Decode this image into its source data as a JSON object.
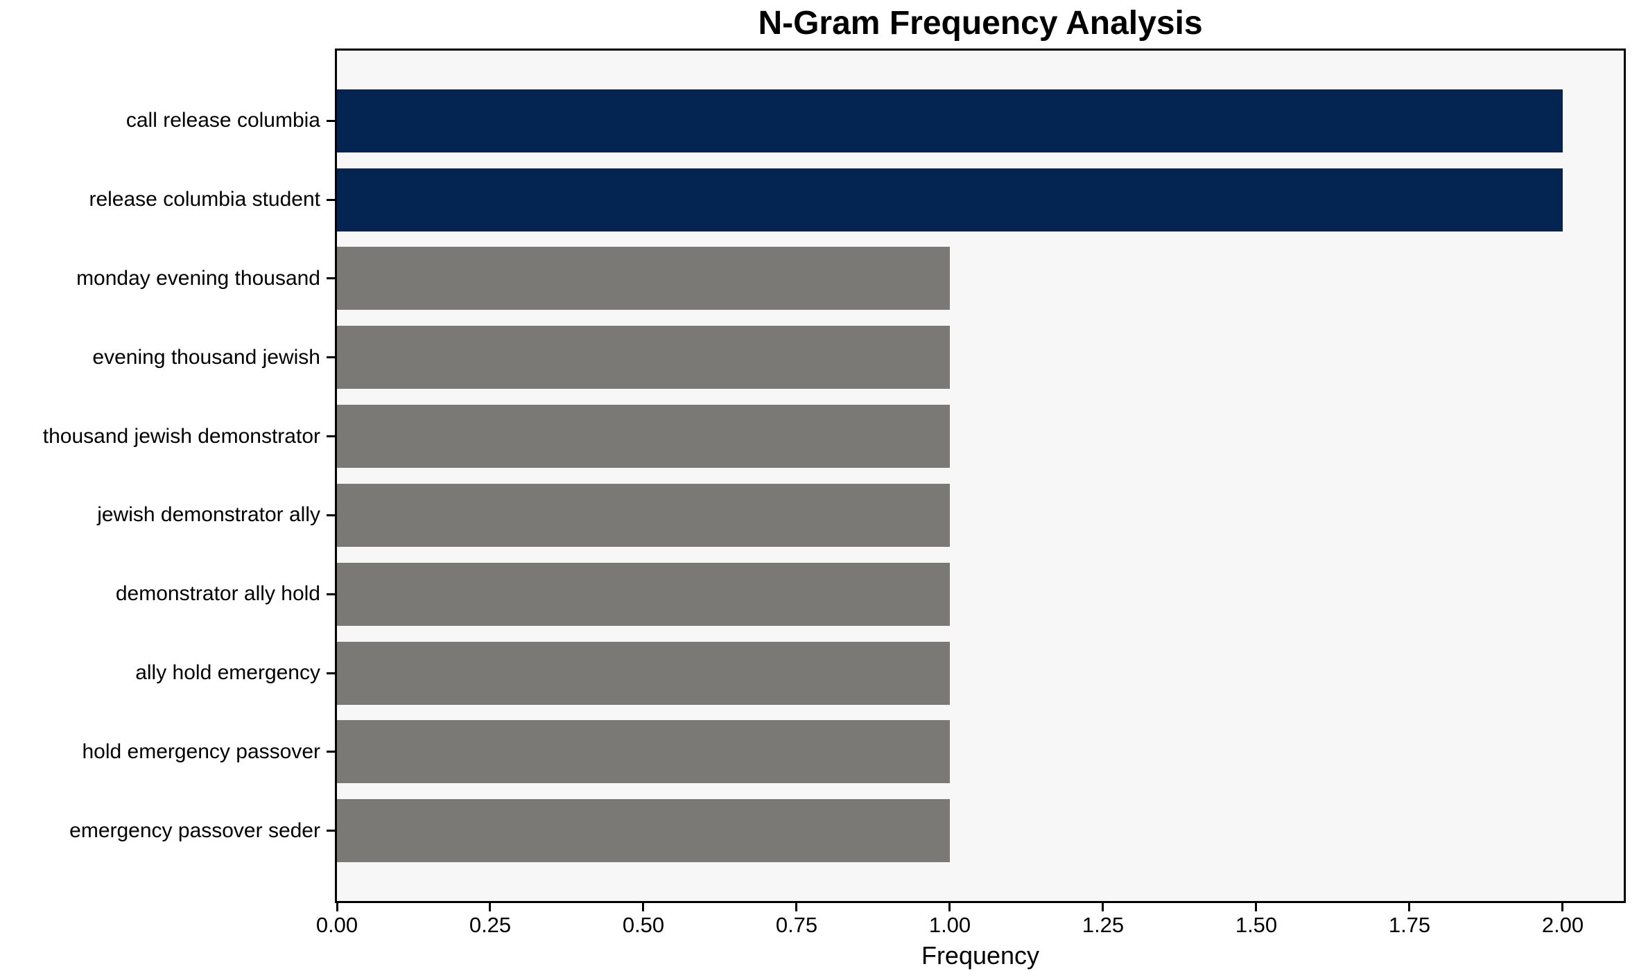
{
  "chart_data": {
    "type": "bar",
    "orientation": "horizontal",
    "title": "N-Gram Frequency Analysis",
    "xlabel": "Frequency",
    "ylabel": "",
    "categories": [
      "call release columbia",
      "release columbia student",
      "monday evening thousand",
      "evening thousand jewish",
      "thousand jewish demonstrator",
      "jewish demonstrator ally",
      "demonstrator ally hold",
      "ally hold emergency",
      "hold emergency passover",
      "emergency passover seder"
    ],
    "values": [
      2,
      2,
      1,
      1,
      1,
      1,
      1,
      1,
      1,
      1
    ],
    "bar_colors": [
      "#042451",
      "#042451",
      "#7A7975",
      "#7A7975",
      "#7A7975",
      "#7A7975",
      "#7A7975",
      "#7A7975",
      "#7A7975",
      "#7A7975"
    ],
    "highlight_color": "#042451",
    "base_color": "#7A7975",
    "plot_background": "#F8F7F7",
    "axis_color": "#000000",
    "xlim": [
      0,
      2.1
    ],
    "xticks": [
      {
        "value": 0.0,
        "label": "0.00"
      },
      {
        "value": 0.25,
        "label": "0.25"
      },
      {
        "value": 0.5,
        "label": "0.50"
      },
      {
        "value": 0.75,
        "label": "0.75"
      },
      {
        "value": 1.0,
        "label": "1.00"
      },
      {
        "value": 1.25,
        "label": "1.25"
      },
      {
        "value": 1.5,
        "label": "1.50"
      },
      {
        "value": 1.75,
        "label": "1.75"
      },
      {
        "value": 2.0,
        "label": "2.00"
      }
    ],
    "grid": false,
    "legend": "none"
  }
}
